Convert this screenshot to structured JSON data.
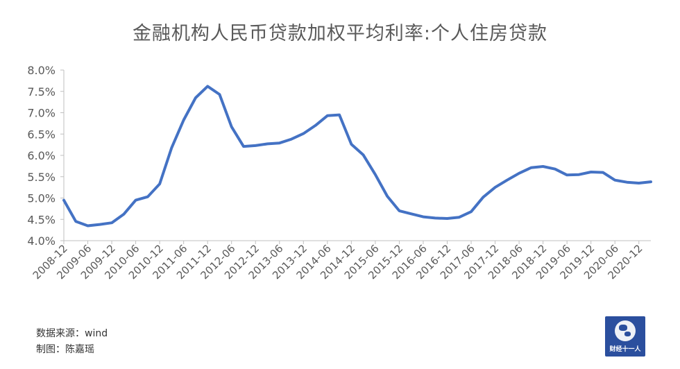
{
  "chart_data": {
    "type": "line",
    "title": "金融机构人民币贷款加权平均利率:个人住房贷款",
    "xlabel": "",
    "ylabel": "",
    "ylim": [
      4.0,
      8.0
    ],
    "y_ticks": [
      "4.0%",
      "4.5%",
      "5.0%",
      "5.5%",
      "6.0%",
      "6.5%",
      "7.0%",
      "7.5%",
      "8.0%"
    ],
    "x_tick_labels": [
      "2008-12",
      "2009-06",
      "2009-12",
      "2010-06",
      "2010-12",
      "2011-06",
      "2011-12",
      "2012-06",
      "2012-12",
      "2013-06",
      "2013-12",
      "2014-06",
      "2014-12",
      "2015-06",
      "2015-12",
      "2016-06",
      "2016-12",
      "2017-06",
      "2017-12",
      "2018-06",
      "2018-12",
      "2019-06",
      "2019-12",
      "2020-06",
      "2020-12"
    ],
    "grid": false,
    "legend": "none",
    "line_color": "#4472c4",
    "x": [
      "2008-12",
      "2009-03",
      "2009-06",
      "2009-09",
      "2009-12",
      "2010-03",
      "2010-06",
      "2010-09",
      "2010-12",
      "2011-03",
      "2011-06",
      "2011-09",
      "2011-12",
      "2012-03",
      "2012-06",
      "2012-09",
      "2012-12",
      "2013-03",
      "2013-06",
      "2013-09",
      "2013-12",
      "2014-03",
      "2014-06",
      "2014-09",
      "2014-12",
      "2015-03",
      "2015-06",
      "2015-09",
      "2015-12",
      "2016-03",
      "2016-06",
      "2016-09",
      "2016-12",
      "2017-03",
      "2017-06",
      "2017-09",
      "2017-12",
      "2018-03",
      "2018-06",
      "2018-09",
      "2018-12",
      "2019-03",
      "2019-06",
      "2019-09",
      "2019-12",
      "2020-03",
      "2020-06",
      "2020-09",
      "2020-12",
      "2021-03"
    ],
    "series": [
      {
        "values": [
          4.95,
          4.45,
          4.35,
          4.38,
          4.42,
          4.62,
          4.95,
          5.03,
          5.33,
          6.18,
          6.83,
          7.35,
          7.62,
          7.43,
          6.67,
          6.21,
          6.23,
          6.27,
          6.29,
          6.38,
          6.51,
          6.7,
          6.93,
          6.95,
          6.26,
          6.01,
          5.55,
          5.04,
          4.7,
          4.63,
          4.56,
          4.53,
          4.52,
          4.55,
          4.68,
          5.02,
          5.25,
          5.42,
          5.58,
          5.71,
          5.74,
          5.68,
          5.54,
          5.55,
          5.61,
          5.6,
          5.42,
          5.37,
          5.35,
          5.38
        ]
      }
    ]
  },
  "footer": {
    "source": "数据来源：wind",
    "maker": "制图：陈嘉瑶"
  },
  "logo": {
    "text": "财经十一人"
  }
}
